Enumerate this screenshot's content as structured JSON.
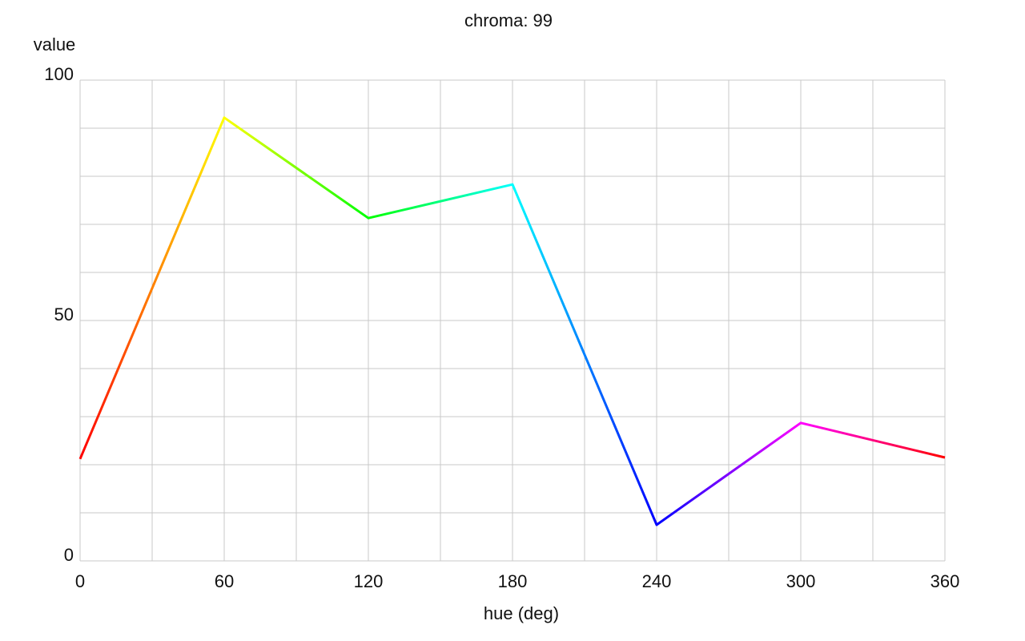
{
  "chart_data": {
    "type": "line",
    "title": "chroma: 99",
    "x_label": "hue (deg)",
    "y_label": "value",
    "x": [
      0,
      60,
      120,
      180,
      240,
      300,
      360
    ],
    "values": [
      21.2,
      92.2,
      71.3,
      78.3,
      7.5,
      28.7,
      21.5
    ],
    "line_color": "hue",
    "xlim": [
      0,
      360
    ],
    "xticks": [
      0,
      60,
      120,
      180,
      240,
      300,
      360
    ],
    "xgrid": [
      0,
      30,
      60,
      90,
      120,
      150,
      180,
      210,
      240,
      270,
      300,
      330,
      360
    ],
    "ylim": [
      0,
      100
    ],
    "yticks": [
      0,
      50,
      100
    ],
    "ygrid": [
      0,
      10,
      20,
      30,
      40,
      50,
      60,
      70,
      80,
      90,
      100
    ],
    "grid": true
  }
}
